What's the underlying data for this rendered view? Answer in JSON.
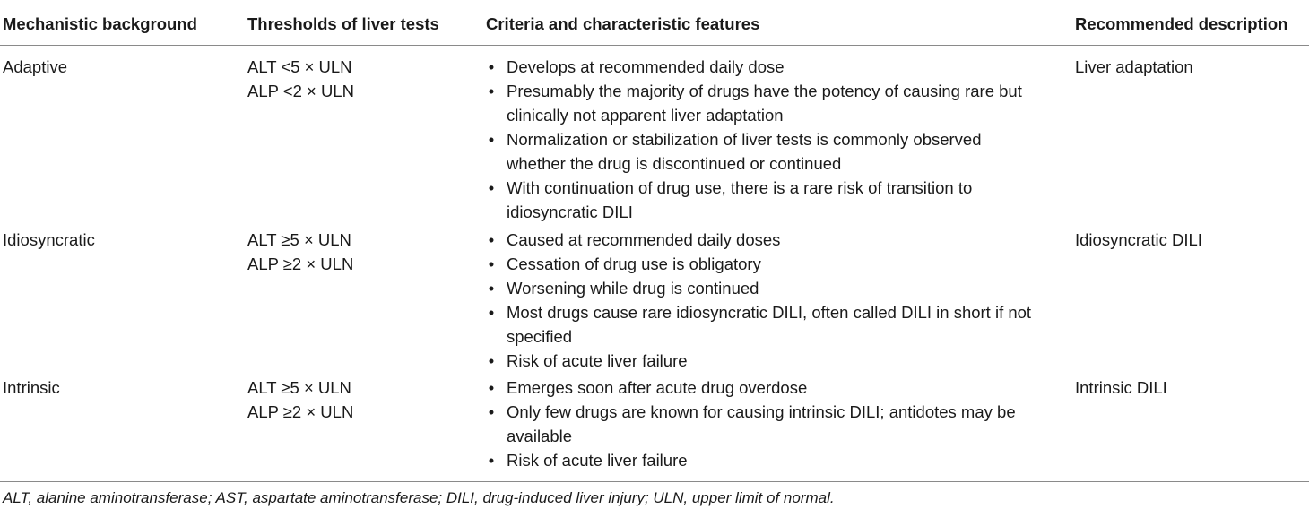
{
  "table": {
    "headers": {
      "mechanism": "Mechanistic background",
      "thresholds": "Thresholds of liver tests",
      "criteria": "Criteria and characteristic features",
      "description": "Recommended description"
    },
    "rows": [
      {
        "mechanism": "Adaptive",
        "thresholds": [
          "ALT <5 × ULN",
          "ALP <2 × ULN"
        ],
        "criteria": [
          "Develops at recommended daily dose",
          "Presumably the majority of drugs have the potency of causing rare but clinically not apparent liver adaptation",
          "Normalization or stabilization of liver tests is commonly observed whether the drug is discontinued or continued",
          "With continuation of drug use, there is a rare risk of transition to idiosyncratic DILI"
        ],
        "description": "Liver adaptation"
      },
      {
        "mechanism": "Idiosyncratic",
        "thresholds": [
          "ALT ≥5 × ULN",
          "ALP ≥2 × ULN"
        ],
        "criteria": [
          "Caused at recommended daily doses",
          "Cessation of drug use is obligatory",
          "Worsening while drug is continued",
          "Most drugs cause rare idiosyncratic DILI, often called DILI in short if not specified",
          "Risk of acute liver failure"
        ],
        "description": "Idiosyncratic DILI"
      },
      {
        "mechanism": "Intrinsic",
        "thresholds": [
          "ALT ≥5 × ULN",
          "ALP ≥2 × ULN"
        ],
        "criteria": [
          "Emerges soon after acute drug overdose",
          "Only few drugs are known for causing intrinsic DILI; antidotes may be available",
          "Risk of acute liver failure"
        ],
        "description": "Intrinsic DILI"
      }
    ],
    "bullet_glyph": "•"
  },
  "footnote": "ALT, alanine aminotransferase; AST, aspartate aminotransferase; DILI, drug-induced liver injury; ULN, upper limit of normal."
}
